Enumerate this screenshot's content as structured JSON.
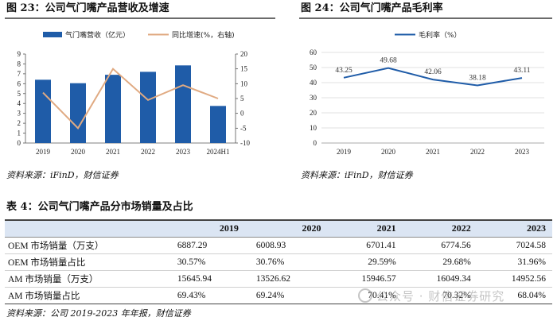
{
  "fig23": {
    "title": "图 23：公司气门嘴产品营收及增速",
    "source": "资料来源：iFinD，财信证券"
  },
  "fig24": {
    "title": "图 24：公司气门嘴产品毛利率",
    "source": "资料来源：iFinD，财信证券"
  },
  "chart_data": [
    {
      "type": "bar",
      "title": "公司气门嘴产品营收及增速",
      "categories": [
        "2019",
        "2020",
        "2021",
        "2022",
        "2023",
        "2024H1"
      ],
      "series": [
        {
          "name": "气门嘴营收（亿元）",
          "kind": "bar",
          "axis": "left",
          "values": [
            6.4,
            6.05,
            6.9,
            7.2,
            7.85,
            3.75
          ]
        },
        {
          "name": "同比增速(%，右轴)",
          "kind": "line",
          "axis": "right",
          "values": [
            7.0,
            -5.0,
            15.0,
            4.5,
            9.5,
            5.0
          ]
        }
      ],
      "y_left": {
        "ticks": [
          "0",
          "1",
          "2",
          "3",
          "4",
          "5",
          "6",
          "7",
          "8",
          "9"
        ],
        "ylim": [
          0,
          9
        ]
      },
      "y_right": {
        "ticks": [
          "-10",
          "-5",
          "0",
          "5",
          "10",
          "15",
          "20"
        ],
        "ylim": [
          -10,
          20
        ]
      },
      "colors": {
        "bar": "#1f5ca8",
        "line": "#e0aa82"
      }
    },
    {
      "type": "line",
      "title": "公司气门嘴产品毛利率",
      "categories": [
        "2019",
        "2020",
        "2021",
        "2022",
        "2023"
      ],
      "series": [
        {
          "name": "毛利率（%）",
          "values": [
            43.25,
            49.68,
            42.06,
            38.18,
            43.11
          ],
          "labels": [
            "43.25",
            "49.68",
            "42.06",
            "38.18",
            "43.11"
          ]
        }
      ],
      "y": {
        "ticks": [
          "0",
          "10",
          "20",
          "30",
          "40",
          "50",
          "60"
        ],
        "ylim": [
          0,
          60
        ]
      },
      "grid": true,
      "colors": {
        "line": "#1f5ca8",
        "grid": "#d9d9d9"
      }
    }
  ],
  "table": {
    "title": "表 4：公司气门嘴产品分市场销量及占比",
    "headers": [
      "",
      "2019",
      "2020",
      "2021",
      "2022",
      "2023"
    ],
    "rows": [
      {
        "label": "OEM 市场销量（万支）",
        "cells": [
          "6887.29",
          "6008.93",
          "6701.41",
          "6774.56",
          "7024.58"
        ]
      },
      {
        "label": "OEM 市场销量占比",
        "cells": [
          "30.57%",
          "30.76%",
          "29.59%",
          "29.68%",
          "31.96%"
        ]
      },
      {
        "label": "AM 市场销量（万支）",
        "cells": [
          "15645.94",
          "13526.62",
          "15946.57",
          "16049.34",
          "14952.56"
        ]
      },
      {
        "label": "AM 市场销量占比",
        "cells": [
          "69.43%",
          "69.24%",
          "70.41%",
          "70.32%",
          "68.04%"
        ]
      }
    ],
    "source": "资料来源：公司 2019-2023 年年报，财信证券"
  },
  "watermark": {
    "text": "公众号 · 财信证券研究"
  }
}
